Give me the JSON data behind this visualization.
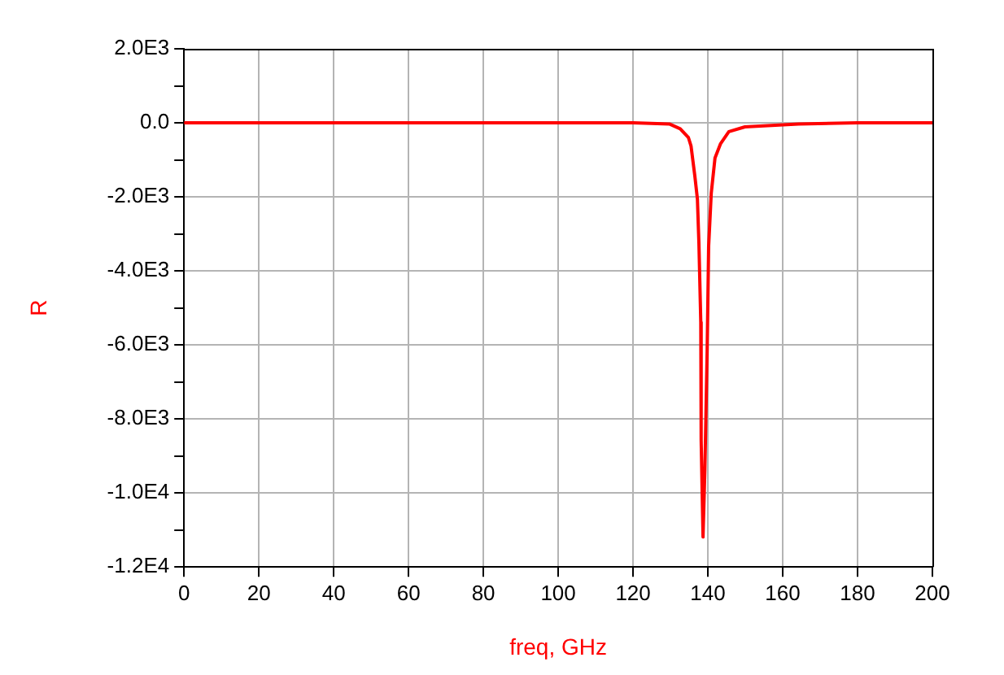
{
  "chart_data": {
    "type": "line",
    "xlabel": "freq, GHz",
    "ylabel": "R",
    "series": [
      {
        "color": "#ff0000",
        "x": [
          0,
          20,
          40,
          60,
          80,
          100,
          120,
          129.7,
          132.6,
          134.8,
          135.5,
          136.5,
          137.2,
          137.6,
          138.1,
          138.2,
          138.5,
          138.7,
          139.2,
          139.8,
          140.2,
          140.9,
          141.9,
          143.4,
          145.6,
          149.9,
          164.2,
          180,
          200
        ],
        "values": [
          0,
          0,
          0,
          0,
          0,
          0,
          0,
          -30,
          -160,
          -400,
          -630,
          -1430,
          -2060,
          -3250,
          -5390,
          -8570,
          -10150,
          -11190,
          -9360,
          -6190,
          -3330,
          -1900,
          -950,
          -560,
          -240,
          -110,
          -30,
          0,
          0
        ]
      }
    ],
    "xlim": [
      0,
      200
    ],
    "xticks": [
      0,
      20,
      40,
      60,
      80,
      100,
      120,
      140,
      160,
      180,
      200
    ],
    "ylim": [
      -12000,
      2000
    ],
    "yticks": [
      {
        "value": -12000,
        "label": "-1.2E4"
      },
      {
        "value": -11000,
        "label": null
      },
      {
        "value": -10000,
        "label": "-1.0E4"
      },
      {
        "value": -9000,
        "label": null
      },
      {
        "value": -8000,
        "label": "-8.0E3"
      },
      {
        "value": -7000,
        "label": null
      },
      {
        "value": -6000,
        "label": "-6.0E3"
      },
      {
        "value": -5000,
        "label": null
      },
      {
        "value": -4000,
        "label": "-4.0E3"
      },
      {
        "value": -3000,
        "label": null
      },
      {
        "value": -2000,
        "label": "-2.0E3"
      },
      {
        "value": -1000,
        "label": null
      },
      {
        "value": 0,
        "label": "0.0"
      },
      {
        "value": 1000,
        "label": null
      },
      {
        "value": 2000,
        "label": "2.0E3"
      }
    ],
    "grid": true,
    "legend": false,
    "marker": "none",
    "line_style": "solid"
  }
}
